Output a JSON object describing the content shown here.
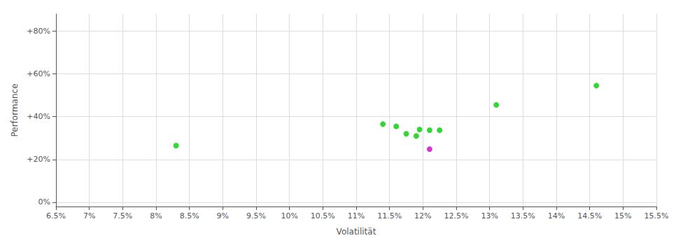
{
  "chart_data": {
    "type": "scatter",
    "xlabel": "Volatilität",
    "ylabel": "Performance",
    "xlim": [
      0.065,
      0.155
    ],
    "ylim": [
      -0.02,
      0.88
    ],
    "xticks": [
      {
        "value": 0.065,
        "label": "6.5%"
      },
      {
        "value": 0.07,
        "label": "7%"
      },
      {
        "value": 0.075,
        "label": "7.5%"
      },
      {
        "value": 0.08,
        "label": "8%"
      },
      {
        "value": 0.085,
        "label": "8.5%"
      },
      {
        "value": 0.09,
        "label": "9%"
      },
      {
        "value": 0.095,
        "label": "9.5%"
      },
      {
        "value": 0.1,
        "label": "10%"
      },
      {
        "value": 0.105,
        "label": "10.5%"
      },
      {
        "value": 0.11,
        "label": "11%"
      },
      {
        "value": 0.115,
        "label": "11.5%"
      },
      {
        "value": 0.12,
        "label": "12%"
      },
      {
        "value": 0.125,
        "label": "12.5%"
      },
      {
        "value": 0.13,
        "label": "13%"
      },
      {
        "value": 0.135,
        "label": "13.5%"
      },
      {
        "value": 0.14,
        "label": "14%"
      },
      {
        "value": 0.145,
        "label": "14.5%"
      },
      {
        "value": 0.15,
        "label": "15%"
      },
      {
        "value": 0.155,
        "label": "15.5%"
      }
    ],
    "yticks": [
      {
        "value": 0.0,
        "label": "0%"
      },
      {
        "value": 0.2,
        "label": "+20%"
      },
      {
        "value": 0.4,
        "label": "+40%"
      },
      {
        "value": 0.6,
        "label": "+60%"
      },
      {
        "value": 0.8,
        "label": "+80%"
      }
    ],
    "grid": true,
    "series": [
      {
        "color": "#00cc00",
        "x": [
          0.083,
          0.114,
          0.116,
          0.1175,
          0.119,
          0.1195,
          0.121,
          0.1225,
          0.131,
          0.146
        ],
        "values": [
          0.265,
          0.365,
          0.355,
          0.32,
          0.31,
          0.34,
          0.337,
          0.337,
          0.455,
          0.545
        ]
      },
      {
        "color": "#cc00cc",
        "x": [
          0.121
        ],
        "values": [
          0.248
        ]
      }
    ]
  }
}
